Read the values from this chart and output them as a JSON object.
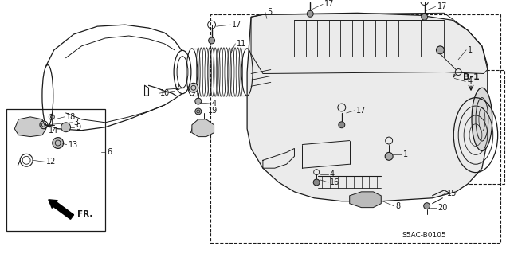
{
  "bg_color": "#ffffff",
  "line_color": "#1a1a1a",
  "diagram_code": "S5AC-B0105",
  "b1_label": "B-1",
  "fr_label": "FR.",
  "figsize": [
    6.4,
    3.19
  ],
  "dpi": 100
}
